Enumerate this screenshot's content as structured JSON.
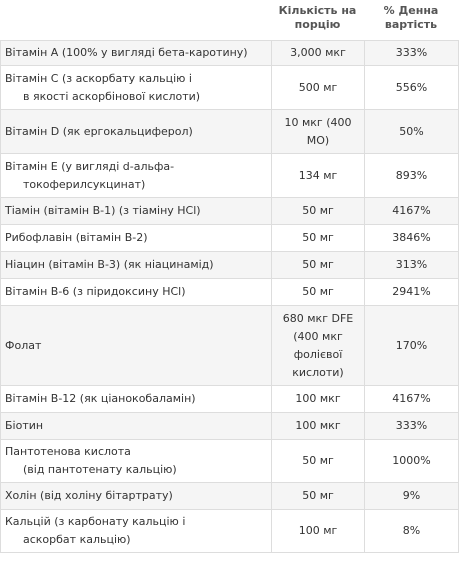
{
  "header": {
    "col_amount": "Кількість на порцію",
    "col_dv": "% Денна вартість"
  },
  "rows": [
    {
      "name": "Вітамін A (100% у вигляді бета-каротину)",
      "name2": "",
      "amount": "3,000 мкг",
      "dv": "333%"
    },
    {
      "name": "Вітамін C (з аскорбату кальцію і",
      "name2": "в якості аскорбінової кислоти)",
      "amount": "500 мг",
      "dv": "556%"
    },
    {
      "name": "Вітамін D (як ергокальциферол)",
      "name2": "",
      "amount": "10 мкг (400 МО)",
      "dv": "50%"
    },
    {
      "name": "Вітамін E (у вигляді d-альфа-",
      "name2": "токоферилсукцинат)",
      "amount": "134 мг",
      "dv": "893%"
    },
    {
      "name": "Тіамін (вітамін B-1) (з тіаміну HCl)",
      "name2": "",
      "amount": "50 мг",
      "dv": "4167%"
    },
    {
      "name": "Рибофлавін (вітамін B-2)",
      "name2": "",
      "amount": "50 мг",
      "dv": "3846%"
    },
    {
      "name": "Ніацин (вітамін B-3) (як ніацинамід)",
      "name2": "",
      "amount": "50 мг",
      "dv": "313%"
    },
    {
      "name": "Вітамін B-6 (з піридоксину HCl)",
      "name2": "",
      "amount": "50 мг",
      "dv": "2941%"
    },
    {
      "name": "Фолат",
      "name2": "",
      "amount": "680 мкг DFE (400 мкг фолієвої кислоти)",
      "dv": "170%"
    },
    {
      "name": "Вітамін B-12 (як ціанокобаламін)",
      "name2": "",
      "amount": "100 мкг",
      "dv": "4167%"
    },
    {
      "name": "Біотин",
      "name2": "",
      "amount": "100 мкг",
      "dv": "333%"
    },
    {
      "name": "Пантотенова кислота",
      "name2": "(від пантотенату кальцію)",
      "amount": "50 мг",
      "dv": "1000%"
    },
    {
      "name": "Холін (від холіну бітартрату)",
      "name2": "",
      "amount": "50 мг",
      "dv": "9%"
    },
    {
      "name": "Кальцій (з карбонату кальцію і",
      "name2": "аскорбат кальцію)",
      "amount": "100 мг",
      "dv": "8%"
    }
  ]
}
